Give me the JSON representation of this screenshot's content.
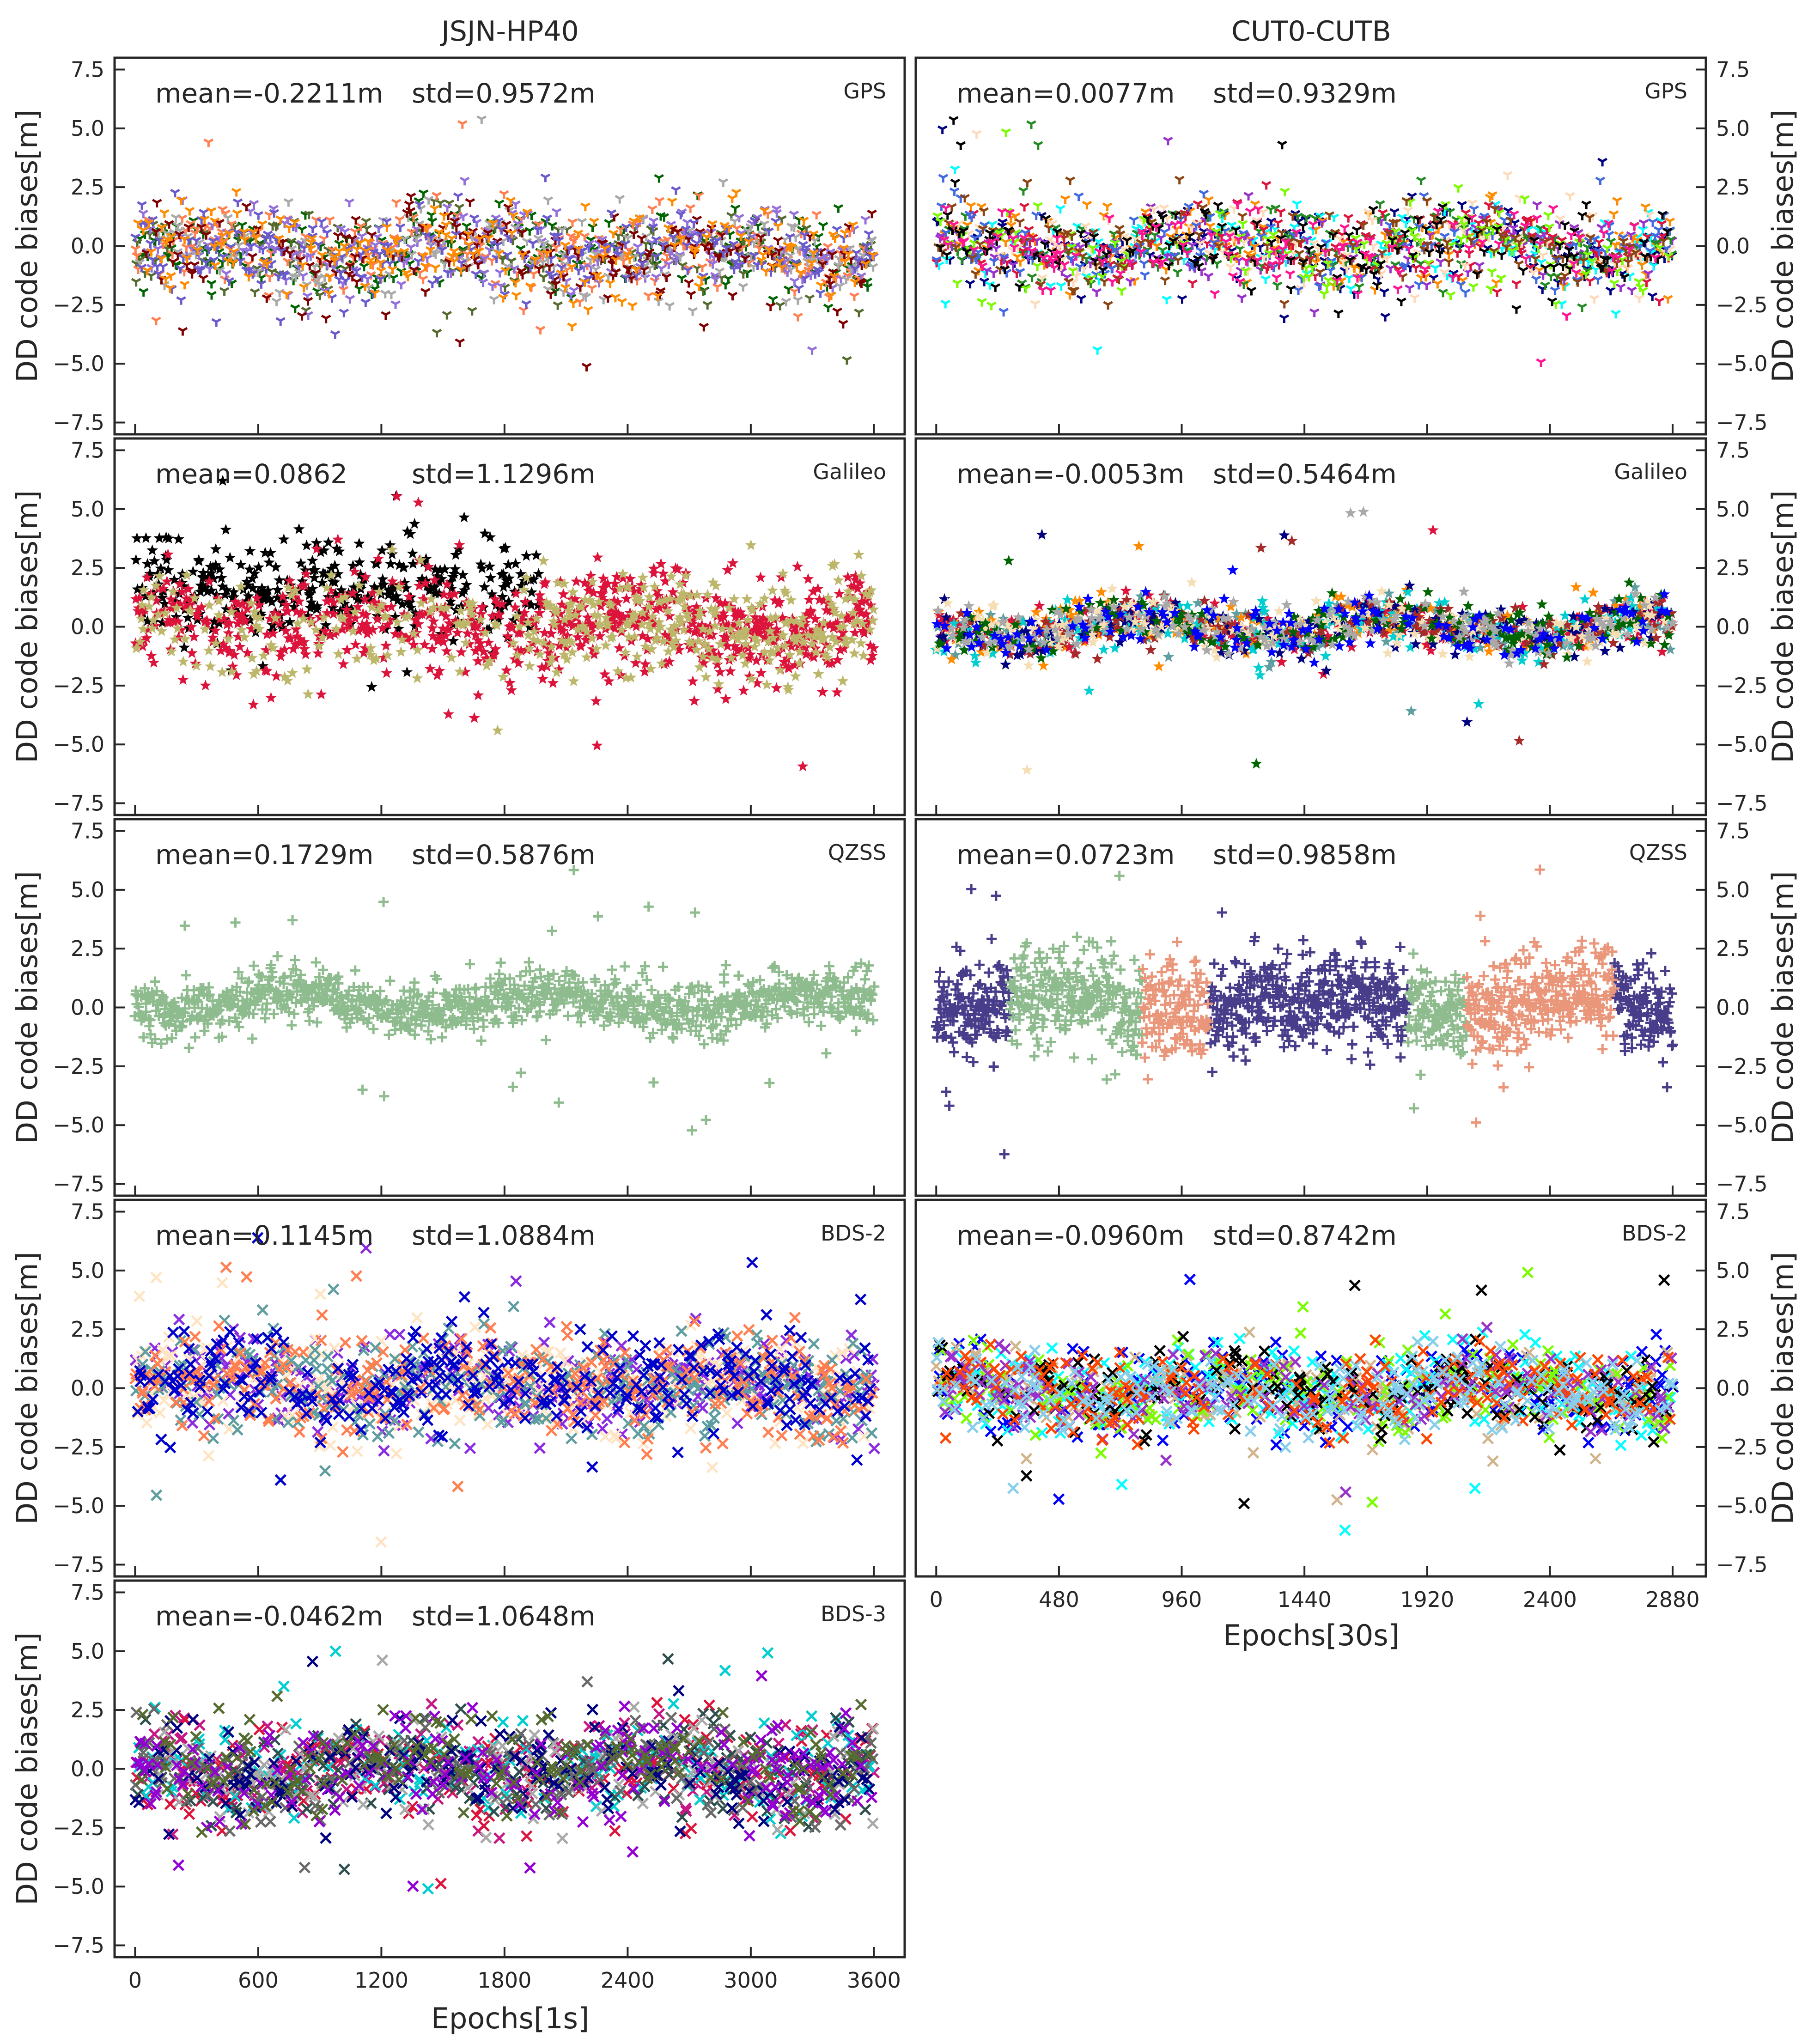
{
  "figure": {
    "columns": [
      {
        "title": "JSJN-HP40",
        "xlabel": "Epochs[1s]"
      },
      {
        "title": "CUT0-CUTB",
        "xlabel": "Epochs[30s]"
      }
    ],
    "ylabel": "DD code biases[m]"
  },
  "chart_data": [
    {
      "type": "scatter",
      "column": 0,
      "system": "GPS",
      "marker": "tri",
      "mean_label": "mean=-0.2211m",
      "std_label": "std=0.9572m",
      "mean": -0.2211,
      "std": 0.9572,
      "xlim": [
        -100,
        3750
      ],
      "ylim": [
        -8,
        8
      ],
      "xticks": [
        0,
        600,
        1200,
        1800,
        2400,
        3000,
        3600
      ],
      "x_range": [
        0,
        3600
      ],
      "yticks": [
        -7.5,
        -5.0,
        -2.5,
        0.0,
        2.5,
        5.0,
        7.5
      ],
      "yticklabels": [
        "−7.5",
        "−5.0",
        "−2.5",
        "0.0",
        "2.5",
        "5.0",
        "7.5"
      ],
      "series_colors": [
        "#006400",
        "#556B2F",
        "#FF7F50",
        "#9370DB",
        "#A9A9A9",
        "#800000",
        "#6A5ACD",
        "#FF8C00"
      ]
    },
    {
      "type": "scatter",
      "column": 1,
      "system": "GPS",
      "marker": "tri",
      "mean_label": "mean=0.0077m",
      "std_label": "std=0.9329m",
      "mean": 0.0077,
      "std": 0.9329,
      "xlim": [
        -80,
        3010
      ],
      "ylim": [
        -8,
        8
      ],
      "xticks": [
        0,
        480,
        960,
        1440,
        1920,
        2400,
        2880
      ],
      "x_range": [
        0,
        2880
      ],
      "yticks": [
        -7.5,
        -5.0,
        -2.5,
        0.0,
        2.5,
        5.0,
        7.5
      ],
      "yticklabels": [
        "−7.5",
        "−5.0",
        "−2.5",
        "0.0",
        "2.5",
        "5.0",
        "7.5"
      ],
      "series_colors": [
        "#000080",
        "#00FFFF",
        "#FF8C00",
        "#9932CC",
        "#228B22",
        "#DC143C",
        "#FFDAB9",
        "#4169E1",
        "#7CFC00",
        "#8B4513",
        "#000000",
        "#FF1493"
      ]
    },
    {
      "type": "scatter",
      "column": 0,
      "system": "Galileo",
      "marker": "star",
      "mean_label": "mean=0.0862",
      "std_label": "std=1.1296m",
      "mean": 0.0862,
      "std": 1.1296,
      "xlim": [
        -100,
        3750
      ],
      "ylim": [
        -8,
        8
      ],
      "xticks": [
        0,
        600,
        1200,
        1800,
        2400,
        3000,
        3600
      ],
      "x_range": [
        0,
        3600
      ],
      "yticks": [
        -7.5,
        -5.0,
        -2.5,
        0.0,
        2.5,
        5.0,
        7.5
      ],
      "yticklabels": [
        "−7.5",
        "−5.0",
        "−2.5",
        "0.0",
        "2.5",
        "5.0",
        "7.5"
      ],
      "series_colors": [
        "#000000",
        "#DC143C",
        "#BDB76B"
      ]
    },
    {
      "type": "scatter",
      "column": 1,
      "system": "Galileo",
      "marker": "star",
      "mean_label": "mean=-0.0053m",
      "std_label": "std=0.5464m",
      "mean": -0.0053,
      "std": 0.5464,
      "xlim": [
        -80,
        3010
      ],
      "ylim": [
        -8,
        8
      ],
      "xticks": [
        0,
        480,
        960,
        1440,
        1920,
        2400,
        2880
      ],
      "x_range": [
        0,
        2880
      ],
      "yticks": [
        -7.5,
        -5.0,
        -2.5,
        0.0,
        2.5,
        5.0,
        7.5
      ],
      "yticklabels": [
        "−7.5",
        "−5.0",
        "−2.5",
        "0.0",
        "2.5",
        "5.0",
        "7.5"
      ],
      "series_colors": [
        "#5F9EA0",
        "#FF8C00",
        "#DC143C",
        "#00CED1",
        "#000080",
        "#A52A2A",
        "#F5DEB3",
        "#006400",
        "#A9A9A9",
        "#0000FF"
      ]
    },
    {
      "type": "scatter",
      "column": 0,
      "system": "QZSS",
      "marker": "plus",
      "mean_label": "mean=0.1729m",
      "std_label": "std=0.5876m",
      "mean": 0.1729,
      "std": 0.5876,
      "xlim": [
        -100,
        3750
      ],
      "ylim": [
        -8,
        8
      ],
      "xticks": [
        0,
        600,
        1200,
        1800,
        2400,
        3000,
        3600
      ],
      "x_range": [
        0,
        3600
      ],
      "yticks": [
        -7.5,
        -5.0,
        -2.5,
        0.0,
        2.5,
        5.0,
        7.5
      ],
      "yticklabels": [
        "−7.5",
        "−5.0",
        "−2.5",
        "0.0",
        "2.5",
        "5.0",
        "7.5"
      ],
      "series_colors": [
        "#8FBC8F"
      ]
    },
    {
      "type": "scatter",
      "column": 1,
      "system": "QZSS",
      "marker": "plus",
      "mean_label": "mean=0.0723m",
      "std_label": "std=0.9858m",
      "mean": 0.0723,
      "std": 0.9858,
      "xlim": [
        -80,
        3010
      ],
      "ylim": [
        -8,
        8
      ],
      "xticks": [
        0,
        480,
        960,
        1440,
        1920,
        2400,
        2880
      ],
      "x_range": [
        0,
        2880
      ],
      "yticks": [
        -7.5,
        -5.0,
        -2.5,
        0.0,
        2.5,
        5.0,
        7.5
      ],
      "yticklabels": [
        "−7.5",
        "−5.0",
        "−2.5",
        "0.0",
        "2.5",
        "5.0",
        "7.5"
      ],
      "series_colors": [
        "#483D8B",
        "#8FBC8F",
        "#E9967A"
      ]
    },
    {
      "type": "scatter",
      "column": 0,
      "system": "BDS-2",
      "marker": "x",
      "mean_label": "mean=0.1145m",
      "std_label": "std=1.0884m",
      "mean": 0.1145,
      "std": 1.0884,
      "xlim": [
        -100,
        3750
      ],
      "ylim": [
        -8,
        8
      ],
      "xticks": [
        0,
        600,
        1200,
        1800,
        2400,
        3000,
        3600
      ],
      "x_range": [
        0,
        3600
      ],
      "yticks": [
        -7.5,
        -5.0,
        -2.5,
        0.0,
        2.5,
        5.0,
        7.5
      ],
      "yticklabels": [
        "−7.5",
        "−5.0",
        "−2.5",
        "0.0",
        "2.5",
        "5.0",
        "7.5"
      ],
      "series_colors": [
        "#8A2BE2",
        "#FFE4C4",
        "#5F9EA0",
        "#FF7F50",
        "#0000CD"
      ]
    },
    {
      "type": "scatter",
      "column": 1,
      "system": "BDS-2",
      "marker": "x",
      "mean_label": "mean=-0.0960m",
      "std_label": "std=0.8742m",
      "mean": -0.096,
      "std": 0.8742,
      "xlim": [
        -80,
        3010
      ],
      "ylim": [
        -8,
        8
      ],
      "xticks": [
        0,
        480,
        960,
        1440,
        1920,
        2400,
        2880
      ],
      "x_range": [
        0,
        2880
      ],
      "yticks": [
        -7.5,
        -5.0,
        -2.5,
        0.0,
        2.5,
        5.0,
        7.5
      ],
      "yticklabels": [
        "−7.5",
        "−5.0",
        "−2.5",
        "0.0",
        "2.5",
        "5.0",
        "7.5"
      ],
      "series_colors": [
        "#0000FF",
        "#00FFFF",
        "#D2B48C",
        "#7CFC00",
        "#000000",
        "#9932CC",
        "#FF4500",
        "#87CEEB"
      ]
    },
    {
      "type": "scatter",
      "column": 0,
      "system": "BDS-3",
      "marker": "x",
      "mean_label": "mean=-0.0462m",
      "std_label": "std=1.0648m",
      "mean": -0.0462,
      "std": 1.0648,
      "xlim": [
        -100,
        3750
      ],
      "ylim": [
        -8,
        8
      ],
      "xticks": [
        0,
        600,
        1200,
        1800,
        2400,
        3000,
        3600
      ],
      "x_range": [
        0,
        3600
      ],
      "yticks": [
        -7.5,
        -5.0,
        -2.5,
        0.0,
        2.5,
        5.0,
        7.5
      ],
      "yticklabels": [
        "−7.5",
        "−5.0",
        "−2.5",
        "0.0",
        "2.5",
        "5.0",
        "7.5"
      ],
      "series_colors": [
        "#C71585",
        "#DC143C",
        "#00CED1",
        "#2F4F4F",
        "#A9A9A9",
        "#696969",
        "#000080",
        "#9400D3",
        "#556B2F"
      ]
    }
  ]
}
